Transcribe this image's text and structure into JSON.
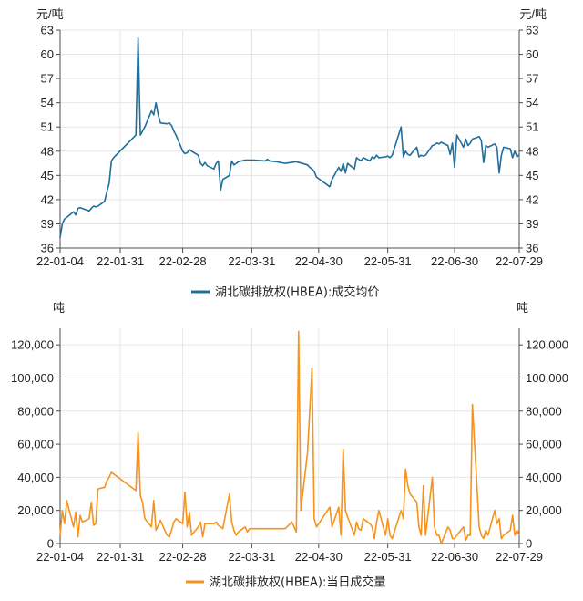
{
  "chart_data": [
    {
      "type": "line",
      "title": "",
      "ylabel_left": "元/吨",
      "ylabel_right": "元/吨",
      "ylim": [
        36,
        63
      ],
      "yticks": [
        36,
        39,
        42,
        45,
        48,
        51,
        54,
        57,
        60,
        63
      ],
      "xlim": [
        "2022-01-04",
        "2022-07-29"
      ],
      "xticks": [
        "22-01-04",
        "22-01-31",
        "22-02-28",
        "22-03-31",
        "22-04-30",
        "22-05-31",
        "22-06-30",
        "22-07-29"
      ],
      "grid": true,
      "legend": "bottom-center",
      "color": "#1f6e9c",
      "series": [
        {
          "name": "湖北碳排放权(HBEA):成交均价",
          "x": [
            "2022-01-04",
            "2022-01-05",
            "2022-01-06",
            "2022-01-07",
            "2022-01-10",
            "2022-01-11",
            "2022-01-12",
            "2022-01-13",
            "2022-01-14",
            "2022-01-17",
            "2022-01-18",
            "2022-01-19",
            "2022-01-20",
            "2022-01-21",
            "2022-01-24",
            "2022-01-25",
            "2022-01-26",
            "2022-01-27",
            "2022-01-28",
            "2022-02-07",
            "2022-02-08",
            "2022-02-09",
            "2022-02-10",
            "2022-02-11",
            "2022-02-14",
            "2022-02-15",
            "2022-02-16",
            "2022-02-17",
            "2022-02-18",
            "2022-02-21",
            "2022-02-22",
            "2022-02-23",
            "2022-02-24",
            "2022-02-25",
            "2022-02-28",
            "2022-03-01",
            "2022-03-02",
            "2022-03-03",
            "2022-03-04",
            "2022-03-07",
            "2022-03-08",
            "2022-03-09",
            "2022-03-10",
            "2022-03-11",
            "2022-03-14",
            "2022-03-15",
            "2022-03-16",
            "2022-03-17",
            "2022-03-18",
            "2022-03-21",
            "2022-03-22",
            "2022-03-23",
            "2022-03-24",
            "2022-03-25",
            "2022-03-28",
            "2022-03-29",
            "2022-03-30",
            "2022-03-31",
            "2022-04-01",
            "2022-04-06",
            "2022-04-07",
            "2022-04-08",
            "2022-04-11",
            "2022-04-15",
            "2022-04-20",
            "2022-04-25",
            "2022-04-26",
            "2022-04-27",
            "2022-04-28",
            "2022-04-29",
            "2022-05-05",
            "2022-05-06",
            "2022-05-09",
            "2022-05-10",
            "2022-05-11",
            "2022-05-12",
            "2022-05-13",
            "2022-05-16",
            "2022-05-17",
            "2022-05-18",
            "2022-05-19",
            "2022-05-20",
            "2022-05-23",
            "2022-05-24",
            "2022-05-25",
            "2022-05-26",
            "2022-05-27",
            "2022-05-30",
            "2022-05-31",
            "2022-06-01",
            "2022-06-02",
            "2022-06-06",
            "2022-06-07",
            "2022-06-08",
            "2022-06-09",
            "2022-06-10",
            "2022-06-13",
            "2022-06-14",
            "2022-06-15",
            "2022-06-16",
            "2022-06-17",
            "2022-06-20",
            "2022-06-21",
            "2022-06-22",
            "2022-06-23",
            "2022-06-24",
            "2022-06-27",
            "2022-06-28",
            "2022-06-29",
            "2022-06-30",
            "2022-07-01",
            "2022-07-04",
            "2022-07-05",
            "2022-07-06",
            "2022-07-07",
            "2022-07-08",
            "2022-07-11",
            "2022-07-12",
            "2022-07-13",
            "2022-07-14",
            "2022-07-15",
            "2022-07-18",
            "2022-07-19",
            "2022-07-20",
            "2022-07-21",
            "2022-07-22",
            "2022-07-25",
            "2022-07-26",
            "2022-07-27",
            "2022-07-28",
            "2022-07-29"
          ],
          "values": [
            37.3,
            39.0,
            39.6,
            39.8,
            40.5,
            40.1,
            40.9,
            41.0,
            40.9,
            40.6,
            40.9,
            41.2,
            41.1,
            41.2,
            41.8,
            43.0,
            44.0,
            46.8,
            47.2,
            50.0,
            62.0,
            50.0,
            50.5,
            51.0,
            53.0,
            52.5,
            54.0,
            52.5,
            51.5,
            51.4,
            51.5,
            51.2,
            50.5,
            50.0,
            48.0,
            47.7,
            47.8,
            48.2,
            48.0,
            47.5,
            46.5,
            46.2,
            46.6,
            46.2,
            45.8,
            46.5,
            46.8,
            43.2,
            44.5,
            45.0,
            46.8,
            46.3,
            46.5,
            46.7,
            46.9,
            46.9,
            46.9,
            46.9,
            46.9,
            46.8,
            47.0,
            46.8,
            46.7,
            46.5,
            46.7,
            46.3,
            46.0,
            45.8,
            45.5,
            44.8,
            43.6,
            44.5,
            46.0,
            45.5,
            46.5,
            45.3,
            46.5,
            45.8,
            47.2,
            47.0,
            46.8,
            47.2,
            46.8,
            47.3,
            47.1,
            47.5,
            47.2,
            47.3,
            47.4,
            47.2,
            47.5,
            51.0,
            47.3,
            48.0,
            47.6,
            47.5,
            48.5,
            47.3,
            47.5,
            47.4,
            47.5,
            48.7,
            48.8,
            49.0,
            48.9,
            49.1,
            48.7,
            47.6,
            49.0,
            46.0,
            50.0,
            48.5,
            49.5,
            48.7,
            49.0,
            49.5,
            49.8,
            49.3,
            46.6,
            48.7,
            48.5,
            48.9,
            48.5,
            45.3,
            47.5,
            48.5,
            48.3,
            47.2,
            48.0,
            47.3,
            47.6
          ]
        }
      ]
    },
    {
      "type": "line",
      "title": "",
      "ylabel_left": "吨",
      "ylabel_right": "吨",
      "ylim": [
        0,
        130000
      ],
      "yticks": [
        0,
        20000,
        40000,
        60000,
        80000,
        100000,
        120000
      ],
      "ytick_labels": [
        "0",
        "20,000",
        "40,000",
        "60,000",
        "80,000",
        "100,000",
        "120,000"
      ],
      "xlim": [
        "2022-01-04",
        "2022-07-29"
      ],
      "xticks": [
        "22-01-04",
        "22-01-31",
        "22-02-28",
        "22-03-31",
        "22-04-30",
        "22-05-31",
        "22-06-30",
        "22-07-29"
      ],
      "grid": true,
      "legend": "bottom-center",
      "color": "#f5931e",
      "series": [
        {
          "name": "湖北碳排放权(HBEA):当日成交量",
          "x": [
            "2022-01-04",
            "2022-01-05",
            "2022-01-06",
            "2022-01-07",
            "2022-01-10",
            "2022-01-11",
            "2022-01-12",
            "2022-01-13",
            "2022-01-14",
            "2022-01-17",
            "2022-01-18",
            "2022-01-19",
            "2022-01-20",
            "2022-01-21",
            "2022-01-24",
            "2022-01-25",
            "2022-01-26",
            "2022-01-27",
            "2022-02-07",
            "2022-02-08",
            "2022-02-09",
            "2022-02-10",
            "2022-02-11",
            "2022-02-14",
            "2022-02-15",
            "2022-02-16",
            "2022-02-17",
            "2022-02-18",
            "2022-02-21",
            "2022-02-22",
            "2022-02-23",
            "2022-02-24",
            "2022-02-25",
            "2022-02-28",
            "2022-03-01",
            "2022-03-02",
            "2022-03-03",
            "2022-03-04",
            "2022-03-07",
            "2022-03-08",
            "2022-03-09",
            "2022-03-10",
            "2022-03-11",
            "2022-03-14",
            "2022-03-15",
            "2022-03-16",
            "2022-03-17",
            "2022-03-18",
            "2022-03-21",
            "2022-03-22",
            "2022-03-23",
            "2022-03-24",
            "2022-03-25",
            "2022-03-28",
            "2022-03-29",
            "2022-03-30",
            "2022-04-08",
            "2022-04-11",
            "2022-04-15",
            "2022-04-18",
            "2022-04-19",
            "2022-04-20",
            "2022-04-21",
            "2022-04-22",
            "2022-04-25",
            "2022-04-26",
            "2022-04-27",
            "2022-04-28",
            "2022-04-29",
            "2022-05-05",
            "2022-05-06",
            "2022-05-09",
            "2022-05-10",
            "2022-05-11",
            "2022-05-12",
            "2022-05-13",
            "2022-05-16",
            "2022-05-17",
            "2022-05-18",
            "2022-05-19",
            "2022-05-20",
            "2022-05-23",
            "2022-05-24",
            "2022-05-25",
            "2022-05-26",
            "2022-05-27",
            "2022-05-30",
            "2022-05-31",
            "2022-06-01",
            "2022-06-02",
            "2022-06-06",
            "2022-06-07",
            "2022-06-08",
            "2022-06-09",
            "2022-06-10",
            "2022-06-13",
            "2022-06-14",
            "2022-06-15",
            "2022-06-16",
            "2022-06-17",
            "2022-06-20",
            "2022-06-21",
            "2022-06-22",
            "2022-06-23",
            "2022-06-24",
            "2022-06-27",
            "2022-06-28",
            "2022-06-29",
            "2022-06-30",
            "2022-07-01",
            "2022-07-04",
            "2022-07-05",
            "2022-07-06",
            "2022-07-07",
            "2022-07-08",
            "2022-07-11",
            "2022-07-12",
            "2022-07-13",
            "2022-07-14",
            "2022-07-15",
            "2022-07-18",
            "2022-07-19",
            "2022-07-20",
            "2022-07-21",
            "2022-07-22",
            "2022-07-25",
            "2022-07-26",
            "2022-07-27",
            "2022-07-28",
            "2022-07-29"
          ],
          "values": [
            5000,
            20000,
            12000,
            26000,
            10000,
            19000,
            4000,
            17000,
            13000,
            15000,
            25000,
            11000,
            12000,
            33000,
            34000,
            38000,
            40000,
            43000,
            32000,
            67000,
            29000,
            25000,
            15000,
            10000,
            26000,
            8000,
            11000,
            14000,
            5000,
            4000,
            8000,
            13000,
            15000,
            12000,
            31000,
            10000,
            19000,
            5000,
            10000,
            13000,
            4000,
            12000,
            12000,
            12000,
            13000,
            11000,
            10000,
            9000,
            30000,
            13000,
            8000,
            5000,
            7000,
            10000,
            7000,
            9000,
            9000,
            9000,
            9000,
            13000,
            10000,
            7000,
            128000,
            20000,
            55000,
            80000,
            106000,
            15000,
            10000,
            22000,
            10000,
            22000,
            5000,
            57000,
            20000,
            16000,
            5000,
            13000,
            9000,
            8000,
            15000,
            12000,
            10000,
            3000,
            13000,
            20000,
            5000,
            15000,
            5000,
            3000,
            20000,
            15000,
            45000,
            35000,
            30000,
            25000,
            10000,
            5000,
            35000,
            5000,
            40000,
            10000,
            5000,
            5000,
            0,
            10000,
            8000,
            3000,
            3000,
            5000,
            10000,
            2000,
            5000,
            5000,
            84000,
            10000,
            5000,
            3000,
            8000,
            5000,
            20000,
            12000,
            15000,
            3000,
            5000,
            8000,
            17000,
            5000,
            8000,
            5000
          ]
        }
      ]
    }
  ]
}
